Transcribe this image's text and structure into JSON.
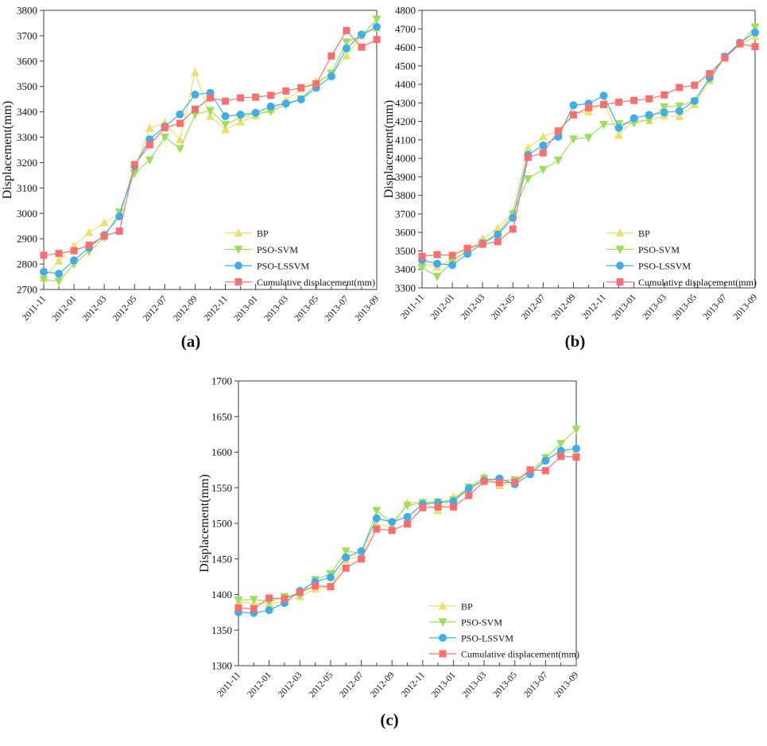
{
  "figure": {
    "captions": [
      "(a)",
      "(b)",
      "(c)"
    ]
  },
  "chart_data": [
    {
      "id": "a",
      "type": "line",
      "title": "",
      "xlabel": "",
      "ylabel": "Displacement(mm)",
      "ylim": [
        2700,
        3800
      ],
      "ytick_step": 100,
      "ytick_labels": [
        "2700",
        "2800",
        "2900",
        "3000",
        "3100",
        "3200",
        "3300",
        "3400",
        "3500",
        "3600",
        "3700",
        "3800"
      ],
      "grid": false,
      "legend_position": "lower-right",
      "x_tick_labels_shown": [
        "2011-11",
        "2012-01",
        "2012-03",
        "2012-05",
        "2012-07",
        "2012-09",
        "2012-11",
        "2013-01",
        "2013-03",
        "2013-05",
        "2013-07",
        "2013-09"
      ],
      "categories": [
        "2011-11",
        "2011-12",
        "2012-01",
        "2012-02",
        "2012-03",
        "2012-04",
        "2012-05",
        "2012-06",
        "2012-07",
        "2012-08",
        "2012-09",
        "2012-10",
        "2012-11",
        "2012-12",
        "2013-01",
        "2013-02",
        "2013-03",
        "2013-04",
        "2013-05",
        "2013-06",
        "2013-07",
        "2013-08",
        "2013-09"
      ],
      "series": [
        {
          "name": "BP",
          "marker": "triangle-up",
          "color": "#E9DF73",
          "values": [
            2745,
            2812,
            2872,
            2925,
            2963,
            3000,
            3175,
            3335,
            3358,
            3290,
            3555,
            3382,
            3330,
            3360,
            3385,
            3410,
            3445,
            3490,
            3520,
            3548,
            3620,
            3700,
            3730
          ]
        },
        {
          "name": "PSO-SVM",
          "marker": "triangle-down",
          "color": "#A0DC5F",
          "values": [
            2740,
            2732,
            2800,
            2850,
            2905,
            3005,
            3158,
            3210,
            3300,
            3255,
            3390,
            3405,
            3350,
            3378,
            3392,
            3402,
            3428,
            3450,
            3510,
            3552,
            3675,
            3700,
            3765
          ]
        },
        {
          "name": "PSO-LSSVM",
          "marker": "circle",
          "color": "#42ACE6",
          "values": [
            2770,
            2762,
            2815,
            2865,
            2915,
            2988,
            3185,
            3292,
            3342,
            3390,
            3468,
            3475,
            3383,
            3389,
            3396,
            3421,
            3433,
            3449,
            3495,
            3540,
            3650,
            3705,
            3735
          ]
        },
        {
          "name": "Cumulative displacement(mm)",
          "marker": "square",
          "color": "#FA6F6F",
          "values": [
            2835,
            2842,
            2853,
            2875,
            2910,
            2930,
            3192,
            3270,
            3337,
            3355,
            3410,
            3455,
            3442,
            3455,
            3458,
            3465,
            3482,
            3495,
            3510,
            3620,
            3720,
            3655,
            3685
          ]
        }
      ]
    },
    {
      "id": "b",
      "type": "line",
      "title": "",
      "xlabel": "",
      "ylabel": "Displacement(mm)",
      "ylim": [
        3300,
        4800
      ],
      "ytick_step": 100,
      "ytick_labels": [
        "3300",
        "3400",
        "3500",
        "3600",
        "3700",
        "3800",
        "3900",
        "4000",
        "4100",
        "4200",
        "4300",
        "4400",
        "4500",
        "4600",
        "4700",
        "4800"
      ],
      "grid": false,
      "legend_position": "lower-right",
      "x_tick_labels_shown": [
        "2011-11",
        "2012-01",
        "2012-03",
        "2012-05",
        "2012-07",
        "2012-09",
        "2012-11",
        "2013-01",
        "2013-03",
        "2013-05",
        "2013-07",
        "2013-09"
      ],
      "categories": [
        "2011-11",
        "2011-12",
        "2012-01",
        "2012-02",
        "2012-03",
        "2012-04",
        "2012-05",
        "2012-06",
        "2012-07",
        "2012-08",
        "2012-09",
        "2012-10",
        "2012-11",
        "2012-12",
        "2013-01",
        "2013-02",
        "2013-03",
        "2013-04",
        "2013-05",
        "2013-06",
        "2013-07",
        "2013-08",
        "2013-09"
      ],
      "series": [
        {
          "name": "BP",
          "marker": "triangle-up",
          "color": "#E9DF73",
          "values": [
            3432,
            3414,
            3453,
            3500,
            3566,
            3623,
            3710,
            4057,
            4117,
            4150,
            4243,
            4252,
            4300,
            4126,
            4208,
            4204,
            4230,
            4226,
            4290,
            4420,
            4545,
            4615,
            4660
          ]
        },
        {
          "name": "PSO-SVM",
          "marker": "triangle-down",
          "color": "#A0DC5F",
          "values": [
            3410,
            3362,
            3440,
            3505,
            3545,
            3590,
            3700,
            3890,
            3940,
            3990,
            4104,
            4113,
            4183,
            4187,
            4191,
            4209,
            4278,
            4283,
            4310,
            4430,
            4550,
            4620,
            4710
          ]
        },
        {
          "name": "PSO-LSSVM",
          "marker": "circle",
          "color": "#42ACE6",
          "values": [
            3450,
            3431,
            3423,
            3484,
            3540,
            3588,
            3678,
            4020,
            4070,
            4117,
            4287,
            4296,
            4339,
            4165,
            4217,
            4235,
            4248,
            4256,
            4310,
            4435,
            4550,
            4625,
            4680
          ]
        },
        {
          "name": "Cumulative displacement(mm)",
          "marker": "square",
          "color": "#FA6F6F",
          "values": [
            3470,
            3480,
            3476,
            3514,
            3536,
            3550,
            3618,
            4005,
            4030,
            4148,
            4235,
            4274,
            4291,
            4304,
            4313,
            4322,
            4343,
            4383,
            4395,
            4458,
            4543,
            4620,
            4604
          ]
        }
      ]
    },
    {
      "id": "c",
      "type": "line",
      "title": "",
      "xlabel": "",
      "ylabel": "Displacement(mm)",
      "ylim": [
        1300,
        1700
      ],
      "ytick_step": 50,
      "ytick_labels": [
        "1300",
        "1350",
        "1400",
        "1450",
        "1500",
        "1550",
        "1600",
        "1650",
        "1700"
      ],
      "grid": false,
      "legend_position": "lower-right",
      "x_tick_labels_shown": [
        "2011-11",
        "2012-01",
        "2012-03",
        "2012-05",
        "2012-07",
        "2012-09",
        "2012-11",
        "2013-01",
        "2013-03",
        "2013-05",
        "2013-07",
        "2013-09"
      ],
      "categories": [
        "2011-11",
        "2011-12",
        "2012-01",
        "2012-02",
        "2012-03",
        "2012-04",
        "2012-05",
        "2012-06",
        "2012-07",
        "2012-08",
        "2012-09",
        "2012-10",
        "2012-11",
        "2012-12",
        "2013-01",
        "2013-02",
        "2013-03",
        "2013-04",
        "2013-05",
        "2013-06",
        "2013-07",
        "2013-08",
        "2013-09"
      ],
      "series": [
        {
          "name": "BP",
          "marker": "triangle-up",
          "color": "#E9DF73",
          "values": [
            1389,
            1388,
            1387,
            1390,
            1397,
            1408,
            1411,
            1448,
            1455,
            1498,
            1495,
            1529,
            1530,
            1518,
            1537,
            1545,
            1566,
            1553,
            1557,
            1573,
            1590,
            1600,
            1600
          ]
        },
        {
          "name": "PSO-SVM",
          "marker": "triangle-down",
          "color": "#A0DC5F",
          "values": [
            1392,
            1393,
            1390,
            1397,
            1400,
            1421,
            1429,
            1461,
            1458,
            1518,
            1500,
            1525,
            1529,
            1530,
            1533,
            1551,
            1563,
            1560,
            1561,
            1572,
            1592,
            1612,
            1632
          ]
        },
        {
          "name": "PSO-LSSVM",
          "marker": "circle",
          "color": "#42ACE6",
          "values": [
            1375,
            1374,
            1378,
            1388,
            1405,
            1418,
            1424,
            1452,
            1461,
            1507,
            1502,
            1509,
            1527,
            1529,
            1531,
            1549,
            1560,
            1563,
            1555,
            1569,
            1588,
            1602,
            1605
          ]
        },
        {
          "name": "Cumulative displacement(mm)",
          "marker": "square",
          "color": "#FA6F6F",
          "values": [
            1381,
            1380,
            1395,
            1394,
            1403,
            1412,
            1411,
            1437,
            1450,
            1492,
            1490,
            1499,
            1522,
            1523,
            1523,
            1539,
            1559,
            1557,
            1558,
            1575,
            1574,
            1594,
            1593
          ]
        }
      ]
    }
  ]
}
